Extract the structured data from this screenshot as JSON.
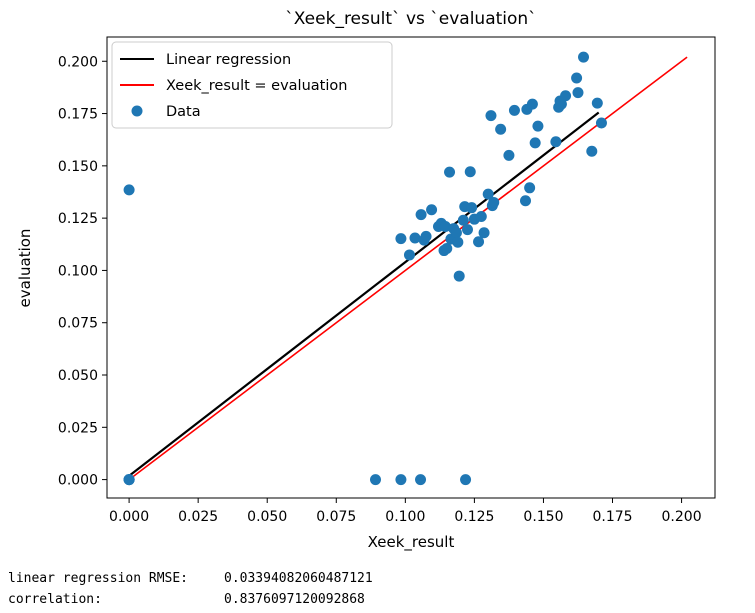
{
  "chart_data": {
    "type": "scatter",
    "title": "`Xeek_result` vs `evaluation`",
    "xlabel": "Xeek_result",
    "ylabel": "evaluation",
    "xlim": [
      -0.008,
      0.2121
    ],
    "ylim": [
      -0.0088,
      0.2116
    ],
    "xticks": [
      "0.000",
      "0.025",
      "0.050",
      "0.075",
      "0.100",
      "0.125",
      "0.150",
      "0.175",
      "0.200"
    ],
    "yticks": [
      "0.000",
      "0.025",
      "0.050",
      "0.075",
      "0.100",
      "0.125",
      "0.150",
      "0.175",
      "0.200"
    ],
    "grid": false,
    "legend_position": "top-left",
    "legend": [
      "Linear regression",
      "Xeek_result = evaluation",
      "Data"
    ],
    "colors": {
      "data": "#1f77b4",
      "regression": "#000000",
      "identity": "#ff0000"
    },
    "regression_line": {
      "x": [
        0.0,
        0.17
      ],
      "y": [
        0.0018,
        0.1755
      ]
    },
    "identity_line": {
      "x": [
        0.0,
        0.202
      ],
      "y": [
        0.0,
        0.202
      ]
    },
    "points": [
      [
        0.0,
        0.1385
      ],
      [
        0.0,
        0.0
      ],
      [
        0.0,
        0.0
      ],
      [
        0.0,
        0.0
      ],
      [
        0.0,
        0.0
      ],
      [
        0.0892,
        0.0
      ],
      [
        0.0984,
        0.0
      ],
      [
        0.1055,
        0.0
      ],
      [
        0.1218,
        0.0
      ],
      [
        0.0984,
        0.1152
      ],
      [
        0.1015,
        0.1074
      ],
      [
        0.1035,
        0.1155
      ],
      [
        0.1057,
        0.1267
      ],
      [
        0.1075,
        0.1163
      ],
      [
        0.1068,
        0.1145
      ],
      [
        0.1095,
        0.129
      ],
      [
        0.112,
        0.121
      ],
      [
        0.113,
        0.1225
      ],
      [
        0.114,
        0.1095
      ],
      [
        0.115,
        0.1105
      ],
      [
        0.1145,
        0.121
      ],
      [
        0.116,
        0.147
      ],
      [
        0.1165,
        0.115
      ],
      [
        0.1175,
        0.12
      ],
      [
        0.1185,
        0.118
      ],
      [
        0.1195,
        0.0973
      ],
      [
        0.119,
        0.1135
      ],
      [
        0.121,
        0.124
      ],
      [
        0.1215,
        0.1305
      ],
      [
        0.1225,
        0.1195
      ],
      [
        0.1235,
        0.1472
      ],
      [
        0.124,
        0.13
      ],
      [
        0.125,
        0.1245
      ],
      [
        0.1265,
        0.1137
      ],
      [
        0.1275,
        0.1258
      ],
      [
        0.1285,
        0.118
      ],
      [
        0.13,
        0.1365
      ],
      [
        0.131,
        0.174
      ],
      [
        0.1315,
        0.131
      ],
      [
        0.132,
        0.1325
      ],
      [
        0.1345,
        0.1675
      ],
      [
        0.1375,
        0.155
      ],
      [
        0.1395,
        0.1765
      ],
      [
        0.1435,
        0.1333
      ],
      [
        0.144,
        0.177
      ],
      [
        0.145,
        0.1395
      ],
      [
        0.146,
        0.1795
      ],
      [
        0.147,
        0.161
      ],
      [
        0.148,
        0.169
      ],
      [
        0.1545,
        0.1615
      ],
      [
        0.1555,
        0.178
      ],
      [
        0.156,
        0.181
      ],
      [
        0.1565,
        0.1795
      ],
      [
        0.158,
        0.1835
      ],
      [
        0.162,
        0.192
      ],
      [
        0.1625,
        0.185
      ],
      [
        0.1645,
        0.202
      ],
      [
        0.1675,
        0.157
      ],
      [
        0.1695,
        0.18
      ],
      [
        0.171,
        0.1705
      ]
    ]
  },
  "output": {
    "rmse_label": "linear regression RMSE:",
    "rmse_value": "0.03394082060487121",
    "corr_label": "correlation:",
    "corr_value": "0.8376097120092868"
  }
}
